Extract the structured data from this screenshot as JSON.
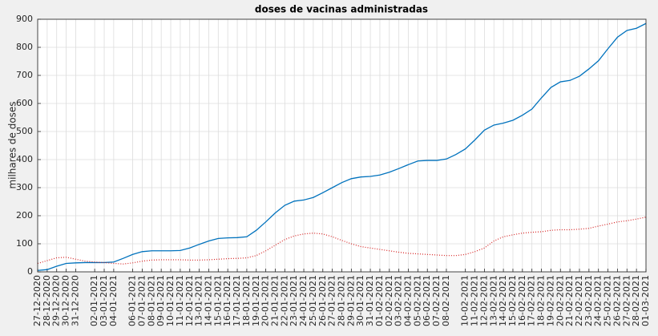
{
  "chart_data": {
    "type": "line",
    "title": "doses de vacinas administradas",
    "y_label": "milhares de doses",
    "categories": [
      "27-12-2020",
      "28-12-2020",
      "29-12-2020",
      "30-12-2020",
      "31-12-2020",
      null,
      "02-01-2021",
      "03-01-2021",
      "04-01-2021",
      null,
      "06-01-2021",
      "07-01-2021",
      "08-01-2021",
      "09-01-2021",
      "10-01-2021",
      "11-01-2021",
      "12-01-2021",
      "13-01-2021",
      "14-01-2021",
      "15-01-2021",
      "16-01-2021",
      "17-01-2021",
      "18-01-2021",
      "19-01-2021",
      "20-01-2021",
      "21-01-2021",
      "22-01-2021",
      "23-01-2021",
      "24-01-2021",
      "25-01-2021",
      "26-01-2021",
      "27-01-2021",
      "28-01-2021",
      "29-01-2021",
      "30-01-2021",
      "31-01-2021",
      "01-02-2021",
      "02-02-2021",
      "03-02-2021",
      "04-02-2021",
      "05-02-2021",
      "06-02-2021",
      "07-02-2021",
      "08-02-2021",
      null,
      "10-02-2021",
      "11-02-2021",
      "12-02-2021",
      "13-02-2021",
      "14-02-2021",
      "15-02-2021",
      "16-02-2021",
      "17-02-2021",
      "18-02-2021",
      "19-02-2021",
      "20-02-2021",
      "21-02-2021",
      "22-02-2021",
      "23-02-2021",
      "24-02-2021",
      "25-02-2021",
      "26-02-2021",
      "27-02-2021",
      "28-02-2021",
      "01-03-2021"
    ],
    "series": [
      {
        "color": "#0072bd",
        "style": "solid",
        "values": [
          5,
          8,
          20,
          30,
          32,
          33,
          33,
          33,
          35,
          48,
          62,
          72,
          75,
          75,
          75,
          76,
          85,
          98,
          110,
          119,
          121,
          122,
          125,
          148,
          178,
          210,
          237,
          252,
          256,
          265,
          282,
          300,
          318,
          332,
          338,
          340,
          345,
          355,
          368,
          382,
          395,
          397,
          397,
          402,
          418,
          438,
          470,
          505,
          523,
          530,
          540,
          558,
          580,
          620,
          657,
          677,
          682,
          697,
          723,
          752,
          795,
          836,
          860,
          868,
          885
        ]
      },
      {
        "color": "#d62020",
        "style": "dotted",
        "values": [
          30,
          40,
          50,
          52,
          45,
          38,
          35,
          33,
          30,
          28,
          32,
          38,
          42,
          43,
          43,
          43,
          42,
          42,
          43,
          45,
          47,
          48,
          50,
          58,
          75,
          95,
          115,
          128,
          135,
          138,
          135,
          125,
          112,
          100,
          90,
          85,
          80,
          75,
          70,
          66,
          64,
          62,
          60,
          58,
          58,
          62,
          72,
          85,
          110,
          125,
          132,
          138,
          141,
          143,
          148,
          150,
          150,
          152,
          155,
          163,
          170,
          178,
          182,
          188,
          195
        ]
      }
    ],
    "ylim": [
      0,
      900
    ],
    "yticks": [
      0,
      100,
      200,
      300,
      400,
      500,
      600,
      700,
      800,
      900
    ],
    "grid": true
  }
}
